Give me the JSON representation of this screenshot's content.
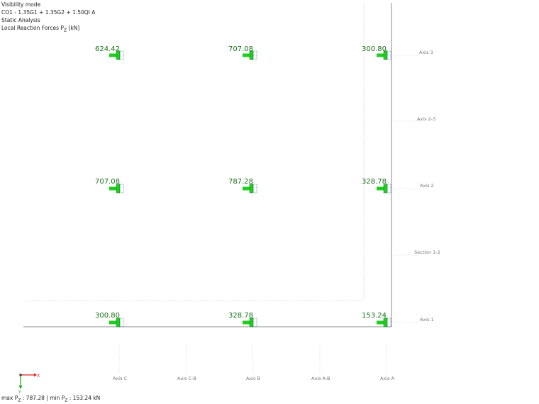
{
  "info": {
    "line1": "Visibility mode",
    "line2": "CO1 - 1.35G1 + 1.35G2 + 1.50QI A",
    "line3": "Static Analysis",
    "line4_prefix": "Local Reaction Forces P",
    "line4_sub": "Z",
    "line4_suffix": " [kN]"
  },
  "reactions": [
    {
      "value": "624.42",
      "col": "C",
      "row": "3"
    },
    {
      "value": "707.08",
      "col": "B",
      "row": "3"
    },
    {
      "value": "300.80",
      "col": "A",
      "row": "3"
    },
    {
      "value": "707.08",
      "col": "C",
      "row": "2"
    },
    {
      "value": "787.28",
      "col": "B",
      "row": "2"
    },
    {
      "value": "328.78",
      "col": "A",
      "row": "2"
    },
    {
      "value": "300.80",
      "col": "C",
      "row": "1"
    },
    {
      "value": "328.78",
      "col": "B",
      "row": "1"
    },
    {
      "value": "153.24",
      "col": "A",
      "row": "1"
    }
  ],
  "row_axes": [
    {
      "label": "Axis 3"
    },
    {
      "label": "Axis  2-3"
    },
    {
      "label": "Axis 2"
    },
    {
      "label": "Section 1-2"
    },
    {
      "label": "Axis 1"
    }
  ],
  "col_axes": [
    {
      "label": "Axis C"
    },
    {
      "label": "Axis C-B"
    },
    {
      "label": "Axis B"
    },
    {
      "label": "Axis A-B"
    },
    {
      "label": "Axis A"
    }
  ],
  "triad": {
    "x_label": "X",
    "y_label": "Y",
    "x_color": "#e02020",
    "y_color": "#20a020"
  },
  "footer": {
    "max_prefix": "max P",
    "max_sub": "Z",
    "max_value": " : 787.28 | min P",
    "min_sub": "Z",
    "min_value": " : 153.24 kN"
  },
  "colors": {
    "support": "#22cc22",
    "support_dark": "#118811",
    "value_text": "#1a6e1a"
  }
}
